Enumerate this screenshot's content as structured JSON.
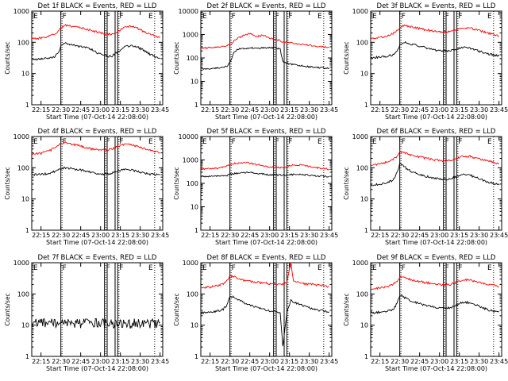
{
  "x_tick_labels": [
    "22:15",
    "22:30",
    "22:45",
    "23:00",
    "23:15",
    "23:30",
    "23:45"
  ],
  "x_axis_label": "Start Time (07-Oct-14 22:08:00)",
  "y_axis_label": "Counts/sec",
  "y_tick_labels": [
    "1",
    "10",
    "100",
    "1000"
  ],
  "colors": {
    "events": "#000000",
    "lld": "#ff0000"
  },
  "chart_data": [
    {
      "type": "line",
      "title": "Det 1f BLACK = Events, RED = LLD",
      "xlim": [
        "22:08",
        "23:47"
      ],
      "ylim": [
        1,
        1000
      ],
      "yscale": "log",
      "x": [
        "22:08",
        "22:15",
        "22:20",
        "22:25",
        "22:28",
        "22:30",
        "22:33",
        "22:38",
        "22:43",
        "22:48",
        "22:53",
        "22:58",
        "23:03",
        "23:08",
        "23:13",
        "23:18",
        "23:23",
        "23:28",
        "23:33",
        "23:38",
        "23:43",
        "23:45"
      ],
      "series": [
        {
          "name": "Events",
          "color": "#000000",
          "values": [
            28,
            30,
            32,
            34,
            45,
            75,
            95,
            85,
            75,
            70,
            60,
            45,
            38,
            35,
            50,
            70,
            80,
            70,
            55,
            40,
            32,
            30
          ]
        },
        {
          "name": "LLD",
          "color": "#ff0000",
          "values": [
            130,
            135,
            150,
            180,
            230,
            300,
            350,
            330,
            300,
            270,
            240,
            210,
            190,
            180,
            220,
            300,
            330,
            280,
            220,
            180,
            150,
            140
          ]
        }
      ],
      "annotations": [
        "E",
        "F",
        "F",
        "F",
        "E"
      ]
    },
    {
      "type": "line",
      "title": "Det 2f BLACK = Events, RED = LLD",
      "xlim": [
        "22:08",
        "23:47"
      ],
      "ylim": [
        1,
        10000
      ],
      "yscale": "log",
      "x": [
        "22:08",
        "22:15",
        "22:20",
        "22:25",
        "22:28",
        "22:31",
        "22:33",
        "22:36",
        "22:40",
        "22:45",
        "22:50",
        "22:55",
        "23:00",
        "23:05",
        "23:08",
        "23:10",
        "23:15",
        "23:20",
        "23:25",
        "23:30",
        "23:35",
        "23:40",
        "23:45"
      ],
      "series": [
        {
          "name": "Events",
          "color": "#000000",
          "values": [
            35,
            35,
            38,
            40,
            45,
            80,
            170,
            240,
            250,
            270,
            260,
            270,
            280,
            270,
            240,
            70,
            55,
            50,
            45,
            42,
            40,
            38,
            36
          ]
        },
        {
          "name": "LLD",
          "color": "#ff0000",
          "values": [
            270,
            270,
            280,
            300,
            350,
            400,
            520,
            700,
            900,
            1100,
            800,
            950,
            700,
            600,
            550,
            480,
            450,
            400,
            380,
            350,
            320,
            300,
            280
          ]
        }
      ],
      "annotations": [
        "E",
        "F",
        "F",
        "F",
        "E"
      ]
    },
    {
      "type": "line",
      "title": "Det 3f BLACK = Events, RED = LLD",
      "xlim": [
        "22:08",
        "23:47"
      ],
      "ylim": [
        1,
        1000
      ],
      "yscale": "log",
      "x": [
        "22:08",
        "22:15",
        "22:20",
        "22:25",
        "22:28",
        "22:30",
        "22:33",
        "22:38",
        "22:43",
        "22:48",
        "22:53",
        "22:58",
        "23:03",
        "23:08",
        "23:13",
        "23:18",
        "23:23",
        "23:28",
        "23:33",
        "23:38",
        "23:43",
        "23:45"
      ],
      "series": [
        {
          "name": "Events",
          "color": "#000000",
          "values": [
            32,
            34,
            36,
            40,
            50,
            85,
            100,
            90,
            80,
            70,
            62,
            55,
            52,
            55,
            62,
            70,
            65,
            55,
            48,
            42,
            38,
            36
          ]
        },
        {
          "name": "LLD",
          "color": "#ff0000",
          "values": [
            130,
            140,
            160,
            190,
            240,
            300,
            340,
            320,
            290,
            260,
            240,
            220,
            210,
            220,
            250,
            300,
            290,
            250,
            220,
            190,
            170,
            150
          ]
        }
      ],
      "annotations": [
        "E",
        "F",
        "F",
        "F",
        "E"
      ]
    },
    {
      "type": "line",
      "title": "Det 4f BLACK = Events, RED = LLD",
      "xlim": [
        "22:08",
        "23:47"
      ],
      "ylim": [
        1,
        1000
      ],
      "yscale": "log",
      "x": [
        "22:08",
        "22:15",
        "22:20",
        "22:25",
        "22:28",
        "22:30",
        "22:33",
        "22:38",
        "22:43",
        "22:48",
        "22:53",
        "22:58",
        "23:03",
        "23:08",
        "23:13",
        "23:18",
        "23:23",
        "23:28",
        "23:33",
        "23:38",
        "23:43",
        "23:45"
      ],
      "series": [
        {
          "name": "Events",
          "color": "#000000",
          "values": [
            60,
            62,
            65,
            75,
            85,
            95,
            100,
            95,
            88,
            80,
            72,
            65,
            62,
            65,
            80,
            90,
            85,
            75,
            68,
            62,
            60,
            60
          ]
        },
        {
          "name": "LLD",
          "color": "#ff0000",
          "values": [
            280,
            290,
            330,
            420,
            520,
            600,
            620,
            580,
            520,
            450,
            400,
            380,
            370,
            390,
            480,
            560,
            560,
            480,
            410,
            360,
            320,
            300
          ]
        }
      ],
      "annotations": [
        "E",
        "F",
        "F",
        "F",
        "E"
      ]
    },
    {
      "type": "line",
      "title": "Det 5f BLACK = Events, RED = LLD",
      "xlim": [
        "22:08",
        "23:47"
      ],
      "ylim": [
        1,
        10000
      ],
      "yscale": "log",
      "x": [
        "22:08",
        "22:15",
        "22:20",
        "22:25",
        "22:28",
        "22:30",
        "22:33",
        "22:38",
        "22:43",
        "22:48",
        "22:53",
        "22:58",
        "23:03",
        "23:08",
        "23:13",
        "23:18",
        "23:23",
        "23:28",
        "23:33",
        "23:38",
        "23:43",
        "23:45"
      ],
      "series": [
        {
          "name": "Events",
          "color": "#000000",
          "values": [
            200,
            200,
            205,
            210,
            220,
            240,
            260,
            280,
            290,
            280,
            260,
            240,
            230,
            225,
            230,
            240,
            235,
            225,
            215,
            205,
            200,
            200
          ]
        },
        {
          "name": "LLD",
          "color": "#ff0000",
          "values": [
            420,
            420,
            440,
            480,
            550,
            620,
            700,
            780,
            760,
            680,
            600,
            520,
            480,
            470,
            520,
            600,
            620,
            560,
            500,
            450,
            420,
            400
          ]
        }
      ],
      "annotations": [
        "E",
        "F",
        "F",
        "F",
        "E"
      ]
    },
    {
      "type": "line",
      "title": "Det 6f BLACK = Events, RED = LLD",
      "xlim": [
        "22:08",
        "23:47"
      ],
      "ylim": [
        1,
        1000
      ],
      "yscale": "log",
      "x": [
        "22:08",
        "22:15",
        "22:20",
        "22:25",
        "22:28",
        "22:30",
        "22:33",
        "22:38",
        "22:43",
        "22:48",
        "22:53",
        "22:58",
        "23:03",
        "23:08",
        "23:13",
        "23:18",
        "23:23",
        "23:28",
        "23:33",
        "23:38",
        "23:43",
        "23:45"
      ],
      "series": [
        {
          "name": "Events",
          "color": "#000000",
          "values": [
            28,
            30,
            34,
            40,
            70,
            140,
            110,
            80,
            65,
            55,
            50,
            45,
            42,
            44,
            52,
            62,
            58,
            48,
            40,
            34,
            30,
            28
          ]
        },
        {
          "name": "LLD",
          "color": "#ff0000",
          "values": [
            120,
            130,
            150,
            180,
            240,
            330,
            300,
            260,
            230,
            210,
            190,
            175,
            165,
            170,
            200,
            240,
            230,
            200,
            180,
            160,
            140,
            130
          ]
        }
      ],
      "annotations": [
        "E",
        "F",
        "F",
        "F",
        "E"
      ]
    },
    {
      "type": "line",
      "title": "Det 7f BLACK = Events, RED = LLD",
      "xlim": [
        "22:08",
        "23:47"
      ],
      "ylim": [
        1,
        1000
      ],
      "yscale": "log",
      "x": [
        "22:08",
        "22:15",
        "22:20",
        "22:25",
        "22:28",
        "22:30",
        "22:33",
        "22:38",
        "22:43",
        "22:48",
        "22:53",
        "22:58",
        "23:03",
        "23:08",
        "23:13",
        "23:18",
        "23:23",
        "23:28",
        "23:33",
        "23:38",
        "23:43",
        "23:45"
      ],
      "series": [
        {
          "name": "Events",
          "color": "#000000",
          "values": [
            12,
            12,
            12,
            12,
            12,
            12,
            12,
            12,
            12,
            12,
            12,
            12,
            12,
            12,
            12,
            12,
            12,
            12,
            12,
            12,
            12,
            12
          ]
        }
      ],
      "annotations": [
        "E",
        "F",
        "F",
        "F",
        "E"
      ]
    },
    {
      "type": "line",
      "title": "Det 8f BLACK = Events, RED = LLD",
      "xlim": [
        "22:08",
        "23:47"
      ],
      "ylim": [
        1,
        1000
      ],
      "yscale": "log",
      "x": [
        "22:08",
        "22:15",
        "22:20",
        "22:25",
        "22:28",
        "22:30",
        "22:33",
        "22:38",
        "22:43",
        "22:48",
        "22:53",
        "22:58",
        "23:03",
        "23:08",
        "23:10",
        "23:13",
        "23:16",
        "23:18",
        "23:23",
        "23:28",
        "23:33",
        "23:38",
        "23:43",
        "23:45"
      ],
      "series": [
        {
          "name": "Events",
          "color": "#000000",
          "values": [
            25,
            26,
            28,
            32,
            45,
            85,
            80,
            60,
            48,
            40,
            35,
            30,
            28,
            26,
            2,
            25,
            65,
            55,
            45,
            38,
            33,
            30,
            28,
            27
          ]
        },
        {
          "name": "LLD",
          "color": "#ff0000",
          "values": [
            160,
            165,
            180,
            210,
            280,
            380,
            360,
            300,
            260,
            240,
            230,
            220,
            210,
            200,
            210,
            230,
            1000,
            260,
            230,
            210,
            200,
            190,
            180,
            175
          ]
        }
      ],
      "annotations": [
        "E",
        "F",
        "F",
        "F",
        "E"
      ]
    },
    {
      "type": "line",
      "title": "Det 9f BLACK = Events, RED = LLD",
      "xlim": [
        "22:08",
        "23:47"
      ],
      "ylim": [
        1,
        1000
      ],
      "yscale": "log",
      "x": [
        "22:08",
        "22:15",
        "22:20",
        "22:25",
        "22:28",
        "22:30",
        "22:33",
        "22:38",
        "22:43",
        "22:48",
        "22:53",
        "22:58",
        "23:03",
        "23:08",
        "23:13",
        "23:18",
        "23:23",
        "23:28",
        "23:33",
        "23:38",
        "23:43",
        "23:45"
      ],
      "series": [
        {
          "name": "Events",
          "color": "#000000",
          "values": [
            25,
            26,
            28,
            32,
            50,
            95,
            80,
            62,
            52,
            45,
            40,
            36,
            34,
            36,
            45,
            55,
            52,
            44,
            36,
            30,
            27,
            26
          ]
        },
        {
          "name": "LLD",
          "color": "#ff0000",
          "values": [
            150,
            155,
            170,
            200,
            260,
            340,
            330,
            290,
            260,
            240,
            220,
            205,
            195,
            200,
            240,
            290,
            280,
            245,
            215,
            195,
            180,
            170
          ]
        }
      ],
      "annotations": [
        "E",
        "F",
        "F",
        "F",
        "E"
      ]
    }
  ]
}
